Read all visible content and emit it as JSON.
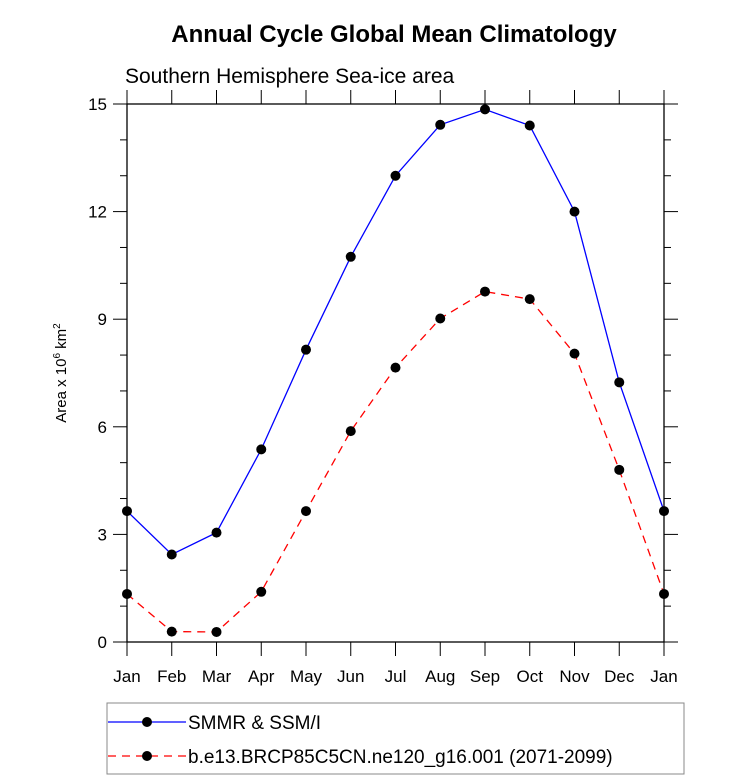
{
  "chart_data": {
    "type": "line",
    "title": "Annual Cycle Global Mean Climatology",
    "subtitle": "Southern Hemisphere Sea-ice area",
    "xlabel": "",
    "ylabel": {
      "base": "Area x 10",
      "sup1": "6",
      "mid": " km",
      "sup2": "2"
    },
    "x": [
      "Jan",
      "Feb",
      "Mar",
      "Apr",
      "May",
      "Jun",
      "Jul",
      "Aug",
      "Sep",
      "Oct",
      "Nov",
      "Dec",
      "Jan"
    ],
    "ylim": [
      0,
      15
    ],
    "yticks": [
      0,
      3,
      6,
      9,
      12,
      15
    ],
    "yminor_step": 1,
    "grid": false,
    "legend_position": "bottom",
    "series": [
      {
        "name": "SMMR & SSM/I",
        "color": "#0000ff",
        "dash": "solid",
        "marker": "filled-circle",
        "values": [
          3.65,
          2.44,
          3.05,
          5.37,
          8.15,
          10.74,
          13.0,
          14.42,
          14.85,
          14.4,
          12.0,
          7.24,
          3.65
        ]
      },
      {
        "name": "b.e13.BRCP85C5CN.ne120_g16.001 (2071-2099)",
        "color": "#ff0000",
        "dash": "dashed",
        "marker": "filled-circle",
        "values": [
          1.34,
          0.29,
          0.28,
          1.4,
          3.65,
          5.88,
          7.65,
          9.02,
          9.77,
          9.56,
          8.04,
          4.8,
          1.34
        ]
      }
    ]
  }
}
